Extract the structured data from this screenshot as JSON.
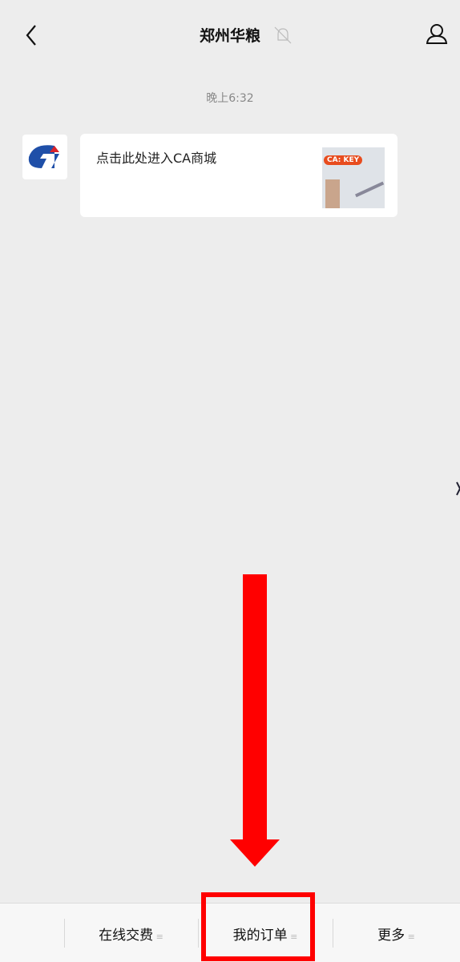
{
  "header": {
    "title": "郑州华粮"
  },
  "chat": {
    "time": "晚上6:32",
    "message": "点击此处进入CA商城",
    "thumbnail_tag": "CA: KEY"
  },
  "menu": {
    "items": [
      "在线交费",
      "我的订单",
      "更多"
    ]
  }
}
